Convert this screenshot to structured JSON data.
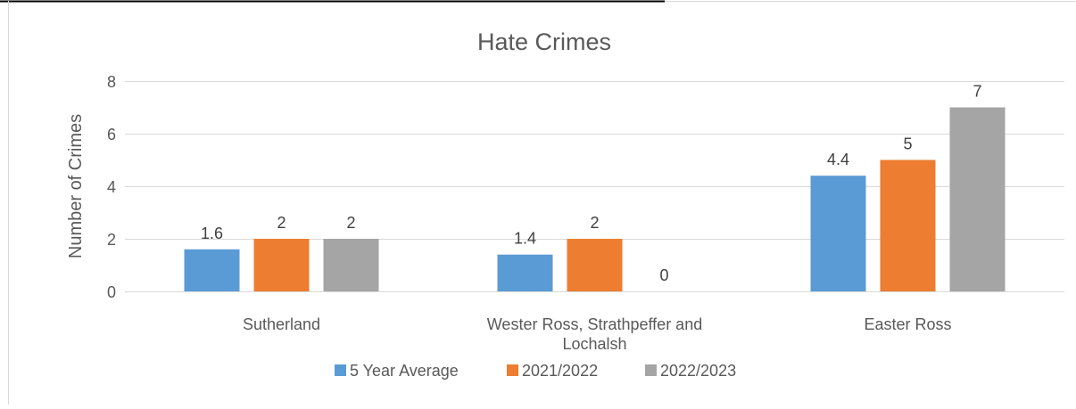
{
  "chart_data": {
    "type": "bar",
    "title": "Hate Crimes",
    "xlabel": "",
    "ylabel": "Number of Crimes",
    "ylim": [
      0,
      8
    ],
    "yticks": [
      0,
      2,
      4,
      6,
      8
    ],
    "grid": true,
    "legend_position": "bottom",
    "categories": [
      [
        "Sutherland"
      ],
      [
        "Wester Ross, Strathpeffer and",
        "Lochalsh"
      ],
      [
        "Easter Ross"
      ]
    ],
    "series": [
      {
        "name": "5 Year Average",
        "color": "#5b9bd5",
        "values": [
          1.6,
          1.4,
          4.4
        ]
      },
      {
        "name": "2021/2022",
        "color": "#ed7d31",
        "values": [
          2,
          2,
          5
        ]
      },
      {
        "name": "2022/2023",
        "color": "#a5a5a5",
        "values": [
          2,
          0,
          7
        ]
      }
    ]
  }
}
